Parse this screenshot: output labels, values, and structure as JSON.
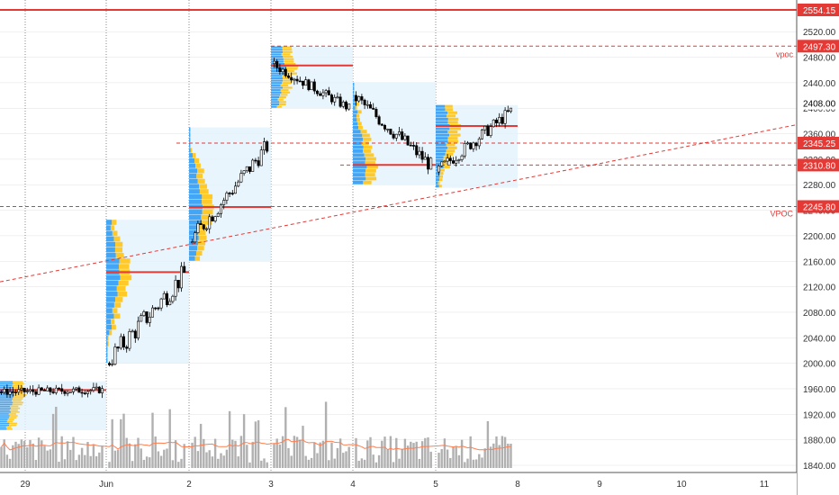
{
  "chart_data": {
    "type": "candlestick",
    "y_axis": {
      "ticks": [
        2520,
        2480,
        2440,
        2400,
        2360,
        2320,
        2280,
        2240,
        2200,
        2160,
        2120,
        2080,
        2040,
        2000,
        1960,
        1920,
        1880,
        1840
      ],
      "tick_labels": [
        "2520.00",
        "2480.00",
        "2440.00",
        "2400.00",
        "2360.00",
        "2320.00",
        "2280.00",
        "2240.00",
        "2200.00",
        "2160.00",
        "2120.00",
        "2080.00",
        "2040.00",
        "2000.00",
        "1960.00",
        "1920.00",
        "1880.00",
        "1840.00"
      ],
      "range": [
        1830,
        2580
      ],
      "position": "right"
    },
    "x_axis": {
      "labels": [
        "29",
        "Jun",
        "2",
        "3",
        "4",
        "5",
        "8",
        "9",
        "10",
        "11"
      ]
    },
    "price_labels": [
      {
        "value": 2554.15,
        "text": "2554.15",
        "color": "#e53935",
        "style": "solid",
        "note": ""
      },
      {
        "value": 2497.3,
        "text": "2497.30",
        "color": "#e53935",
        "style": "dashed",
        "note": "vpoc"
      },
      {
        "value": 2408.0,
        "text": "2408.00",
        "color": "#000000",
        "style": "none",
        "note": ""
      },
      {
        "value": 2345.25,
        "text": "2345.25",
        "color": "#e53935",
        "style": "dashed",
        "note": ""
      },
      {
        "value": 2310.8,
        "text": "2310.80",
        "color": "#e53935",
        "style": "dashed",
        "note": ""
      },
      {
        "value": 2245.8,
        "text": "2245.80",
        "color": "#e53935",
        "style": "dashed",
        "note": "VPOC"
      }
    ],
    "sessions": [
      {
        "label": "29",
        "open": 1955,
        "close": 1958,
        "high": 1972,
        "low": 1900,
        "poc": 1958,
        "vah": 1972,
        "val": 1895
      },
      {
        "label": "Jun",
        "open": 2000,
        "close": 2140,
        "high": 2225,
        "low": 1995,
        "poc": 2143,
        "vah": 2225,
        "val": 2000
      },
      {
        "label": "2",
        "open": 2190,
        "close": 2340,
        "high": 2370,
        "low": 2185,
        "poc": 2245,
        "vah": 2370,
        "val": 2160
      },
      {
        "label": "3",
        "open": 2470,
        "close": 2400,
        "high": 2497,
        "low": 2395,
        "poc": 2467,
        "vah": 2497,
        "val": 2400
      },
      {
        "label": "4",
        "open": 2420,
        "close": 2310,
        "high": 2440,
        "low": 2280,
        "poc": 2311,
        "vah": 2440,
        "val": 2280
      },
      {
        "label": "5",
        "open": 2300,
        "close": 2395,
        "high": 2410,
        "low": 2275,
        "poc": 2372,
        "vah": 2405,
        "val": 2275
      }
    ],
    "trendline": {
      "from": {
        "session": 0,
        "price": 2170
      },
      "to": {
        "session": 6.2,
        "price": 2360
      }
    },
    "volume_ma_color": "#ff7f50",
    "colors": {
      "up": "#ffffff",
      "down": "#000000",
      "wick": "#000000",
      "poc": "#e53935",
      "profile_blue": "#42a5f5",
      "profile_yellow": "#ffca28",
      "value_area": "#e3f2fd",
      "volume": "#b0b0b0",
      "grid": "#e0e0e0"
    }
  }
}
